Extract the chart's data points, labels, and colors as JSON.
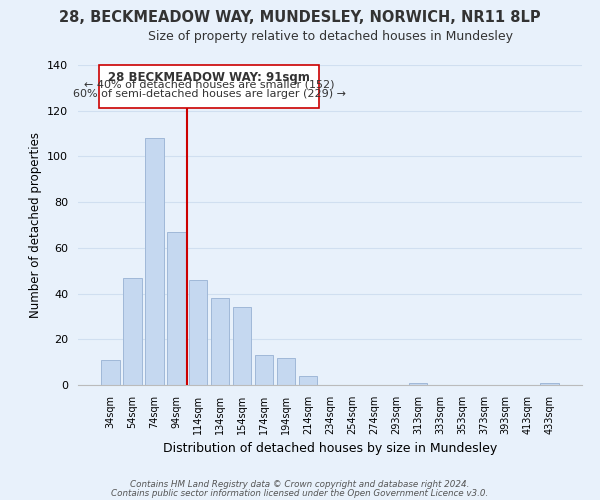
{
  "title_line1": "28, BECKMEADOW WAY, MUNDESLEY, NORWICH, NR11 8LP",
  "title_line2": "Size of property relative to detached houses in Mundesley",
  "xlabel": "Distribution of detached houses by size in Mundesley",
  "ylabel": "Number of detached properties",
  "bar_labels": [
    "34sqm",
    "54sqm",
    "74sqm",
    "94sqm",
    "114sqm",
    "134sqm",
    "154sqm",
    "174sqm",
    "194sqm",
    "214sqm",
    "234sqm",
    "254sqm",
    "274sqm",
    "293sqm",
    "313sqm",
    "333sqm",
    "353sqm",
    "373sqm",
    "393sqm",
    "413sqm",
    "433sqm"
  ],
  "bar_values": [
    11,
    47,
    108,
    67,
    46,
    38,
    34,
    13,
    12,
    4,
    0,
    0,
    0,
    0,
    1,
    0,
    0,
    0,
    0,
    0,
    1
  ],
  "bar_color": "#c5d8f0",
  "bar_edge_color": "#a0b8d8",
  "vline_x": 3.5,
  "vline_color": "#cc0000",
  "ylim": [
    0,
    140
  ],
  "yticks": [
    0,
    20,
    40,
    60,
    80,
    100,
    120,
    140
  ],
  "annotation_title": "28 BECKMEADOW WAY: 91sqm",
  "annotation_line1": "← 40% of detached houses are smaller (152)",
  "annotation_line2": "60% of semi-detached houses are larger (229) →",
  "annotation_box_color": "#ffffff",
  "annotation_box_edge": "#cc0000",
  "footer_line1": "Contains HM Land Registry data © Crown copyright and database right 2024.",
  "footer_line2": "Contains public sector information licensed under the Open Government Licence v3.0.",
  "background_color": "#e8f1fb",
  "plot_bg_color": "#e8f1fb",
  "grid_color": "#d0dff0"
}
